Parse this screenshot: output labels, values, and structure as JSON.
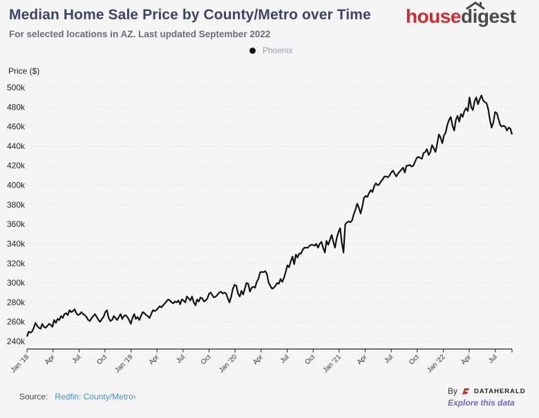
{
  "header": {
    "title": "Median Home Sale Price by County/Metro over Time",
    "subtitle": "For selected locations in AZ. Last updated September 2022"
  },
  "brand": {
    "house": "house",
    "digest": "digest",
    "house_color": "#d12b2e",
    "digest_color": "#4a4a4a"
  },
  "footer": {
    "source_label": "Source:",
    "source_link": "Redfin: County/Metro",
    "source_chevron": "›",
    "by_label": "By",
    "dataherald_label": "DATAHERALD",
    "explore_label": "Explore this data"
  },
  "chart_data": {
    "type": "line",
    "title": "Median Home Sale Price by County/Metro over Time",
    "subtitle": "For selected locations in AZ. Last updated September 2022",
    "ylabel": "Price ($)",
    "xlabel": "",
    "ylim": [
      240000,
      500000
    ],
    "yticks": [
      240000,
      260000,
      280000,
      300000,
      320000,
      340000,
      360000,
      380000,
      400000,
      420000,
      440000,
      460000,
      480000,
      500000
    ],
    "ytick_labels": [
      "240k",
      "260k",
      "280k",
      "300k",
      "320k",
      "340k",
      "360k",
      "380k",
      "400k",
      "420k",
      "440k",
      "460k",
      "480k",
      "500k"
    ],
    "x_start": "2018-01",
    "x_end": "2022-09",
    "xticks": [
      "Jan '18",
      "Apr",
      "Jul",
      "Oct",
      "Jan '19",
      "Apr",
      "Jul",
      "Oct",
      "Jan '20",
      "Apr",
      "Jul",
      "Oct",
      "Jan '21",
      "Apr",
      "Jul",
      "Oct",
      "Jan '22",
      "Apr",
      "Jul"
    ],
    "grid": true,
    "legend": "top-center",
    "series": [
      {
        "name": "Phoenix",
        "color": "#111111",
        "frequency": "weekly",
        "values": [
          245000,
          250000,
          249000,
          250000,
          254000,
          259000,
          256000,
          254000,
          253000,
          258000,
          255000,
          254000,
          256000,
          258000,
          257000,
          255000,
          262000,
          259000,
          263000,
          262000,
          266000,
          264000,
          268000,
          269000,
          267000,
          272000,
          270000,
          271000,
          273000,
          269000,
          267000,
          268000,
          270000,
          268000,
          267000,
          265000,
          262000,
          261000,
          264000,
          266000,
          268000,
          265000,
          262000,
          260000,
          263000,
          265000,
          270000,
          272000,
          264000,
          261000,
          262000,
          266000,
          264000,
          262000,
          265000,
          268000,
          263000,
          266000,
          267000,
          265000,
          262000,
          258000,
          264000,
          268000,
          263000,
          265000,
          262000,
          266000,
          270000,
          269000,
          267000,
          266000,
          264000,
          268000,
          272000,
          271000,
          272000,
          274000,
          276000,
          275000,
          277000,
          279000,
          281000,
          283000,
          282000,
          280000,
          279000,
          281000,
          280000,
          282000,
          278000,
          283000,
          282000,
          280000,
          286000,
          284000,
          282000,
          286000,
          280000,
          277000,
          283000,
          281000,
          285000,
          284000,
          281000,
          282000,
          284000,
          289000,
          290000,
          287000,
          285000,
          286000,
          288000,
          290000,
          291000,
          289000,
          290000,
          289000,
          284000,
          280000,
          286000,
          294000,
          298000,
          297000,
          289000,
          286000,
          292000,
          288000,
          294000,
          300000,
          299000,
          291000,
          295000,
          296000,
          295000,
          301000,
          304000,
          311000,
          311000,
          311000,
          312000,
          309000,
          300000,
          297000,
          294000,
          295000,
          297000,
          300000,
          299000,
          304000,
          301000,
          305000,
          311000,
          318000,
          316000,
          322000,
          327000,
          319000,
          329000,
          326000,
          330000,
          330000,
          334000,
          336000,
          336000,
          336000,
          338000,
          339000,
          339000,
          338000,
          340000,
          336000,
          340000,
          342000,
          336000,
          331000,
          343000,
          339000,
          344000,
          349000,
          342000,
          336000,
          346000,
          352000,
          356000,
          341000,
          331000,
          360000,
          362000,
          363000,
          362000,
          364000,
          370000,
          375000,
          381000,
          377000,
          371000,
          378000,
          387000,
          389000,
          388000,
          392000,
          395000,
          393000,
          399000,
          402000,
          400000,
          401000,
          404000,
          406000,
          409000,
          409000,
          408000,
          410000,
          413000,
          415000,
          412000,
          409000,
          412000,
          414000,
          416000,
          418000,
          413000,
          420000,
          420000,
          421000,
          419000,
          420000,
          424000,
          428000,
          429000,
          428000,
          427000,
          433000,
          434000,
          437000,
          431000,
          434000,
          441000,
          438000,
          434000,
          442000,
          452000,
          449000,
          443000,
          451000,
          454000,
          462000,
          467000,
          470000,
          461000,
          456000,
          467000,
          471000,
          465000,
          473000,
          470000,
          476000,
          479000,
          476000,
          490000,
          480000,
          477000,
          486000,
          490000,
          483000,
          488000,
          492000,
          487000,
          485000,
          484000,
          478000,
          467000,
          459000,
          464000,
          475000,
          474000,
          468000,
          462000,
          460000,
          461000,
          460000,
          456000,
          459000,
          458000,
          452000
        ]
      }
    ]
  }
}
